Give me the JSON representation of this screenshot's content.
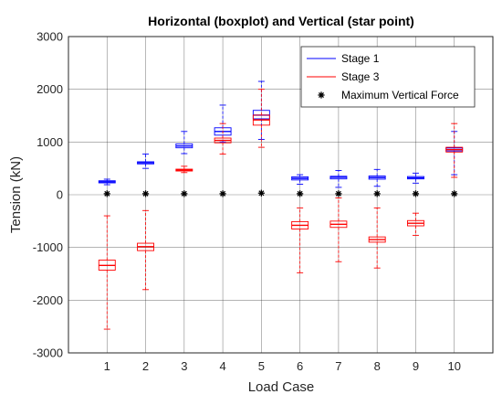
{
  "chart_data": {
    "type": "boxplot",
    "title": "Horizontal (boxplot) and Vertical (star point)",
    "xlabel": "Load Case",
    "ylabel": "Tension (kN)",
    "categories": [
      "1",
      "2",
      "3",
      "4",
      "5",
      "6",
      "7",
      "8",
      "9",
      "10"
    ],
    "yticks": [
      "-3000",
      "-2000",
      "-1000",
      "0",
      "1000",
      "2000",
      "3000"
    ],
    "ylim": [
      -3000,
      3000
    ],
    "grid": true,
    "legend_position": "top-right",
    "legend": [
      {
        "label": "Stage 1",
        "color": "#0000ff",
        "marker": "line"
      },
      {
        "label": "Stage 3",
        "color": "#ff0000",
        "marker": "line"
      },
      {
        "label": "Maximum Vertical Force",
        "color": "#000000",
        "marker": "star"
      }
    ],
    "series": [
      {
        "name": "Stage 1",
        "color": "#0000ff",
        "boxes": [
          {
            "case": 1,
            "min": 190,
            "q1": 225,
            "median": 245,
            "q3": 265,
            "max": 295
          },
          {
            "case": 2,
            "min": 500,
            "q1": 585,
            "median": 605,
            "q3": 625,
            "max": 770
          },
          {
            "case": 3,
            "min": 780,
            "q1": 890,
            "median": 925,
            "q3": 965,
            "max": 1200
          },
          {
            "case": 4,
            "min": 1000,
            "q1": 1130,
            "median": 1200,
            "q3": 1270,
            "max": 1700
          },
          {
            "case": 5,
            "min": 1050,
            "q1": 1440,
            "median": 1510,
            "q3": 1600,
            "max": 2150
          },
          {
            "case": 6,
            "min": 200,
            "q1": 280,
            "median": 310,
            "q3": 340,
            "max": 380
          },
          {
            "case": 7,
            "min": 140,
            "q1": 300,
            "median": 330,
            "q3": 350,
            "max": 460
          },
          {
            "case": 8,
            "min": 160,
            "q1": 295,
            "median": 325,
            "q3": 355,
            "max": 480
          },
          {
            "case": 9,
            "min": 220,
            "q1": 300,
            "median": 320,
            "q3": 345,
            "max": 410
          },
          {
            "case": 10,
            "min": 380,
            "q1": 830,
            "median": 860,
            "q3": 890,
            "max": 1200
          }
        ]
      },
      {
        "name": "Stage 3",
        "color": "#ff0000",
        "boxes": [
          {
            "case": 1,
            "min": -2550,
            "q1": -1430,
            "median": -1340,
            "q3": -1240,
            "max": -400
          },
          {
            "case": 2,
            "min": -1800,
            "q1": -1060,
            "median": -985,
            "q3": -920,
            "max": -300
          },
          {
            "case": 3,
            "min": 420,
            "q1": 450,
            "median": 465,
            "q3": 485,
            "max": 540
          },
          {
            "case": 4,
            "min": 770,
            "q1": 985,
            "median": 1030,
            "q3": 1075,
            "max": 1350
          },
          {
            "case": 5,
            "min": 900,
            "q1": 1320,
            "median": 1420,
            "q3": 1510,
            "max": 2000
          },
          {
            "case": 6,
            "min": -1480,
            "q1": -650,
            "median": -580,
            "q3": -510,
            "max": -250
          },
          {
            "case": 7,
            "min": -1270,
            "q1": -620,
            "median": -560,
            "q3": -500,
            "max": -60
          },
          {
            "case": 8,
            "min": -1390,
            "q1": -900,
            "median": -850,
            "q3": -800,
            "max": -250
          },
          {
            "case": 9,
            "min": -770,
            "q1": -590,
            "median": -540,
            "q3": -490,
            "max": -350
          },
          {
            "case": 10,
            "min": 330,
            "q1": 810,
            "median": 855,
            "q3": 900,
            "max": 1350
          }
        ]
      },
      {
        "name": "Maximum Vertical Force",
        "color": "#000000",
        "marker": "star",
        "values": [
          20,
          20,
          20,
          20,
          30,
          20,
          20,
          20,
          20,
          20
        ]
      }
    ]
  }
}
